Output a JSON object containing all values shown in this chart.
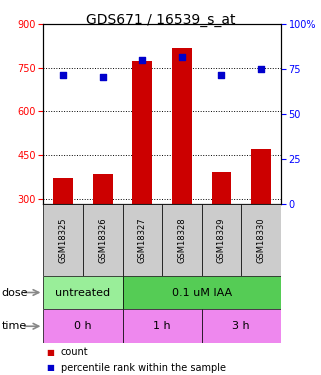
{
  "title": "GDS671 / 16539_s_at",
  "samples": [
    "GSM18325",
    "GSM18326",
    "GSM18327",
    "GSM18328",
    "GSM18329",
    "GSM18330"
  ],
  "counts": [
    370,
    385,
    775,
    820,
    390,
    470
  ],
  "percentiles": [
    72,
    71,
    80,
    82,
    72,
    75
  ],
  "ylim_left": [
    280,
    900
  ],
  "ylim_right": [
    0,
    100
  ],
  "yticks_left": [
    300,
    450,
    600,
    750,
    900
  ],
  "yticks_right": [
    0,
    25,
    50,
    75,
    100
  ],
  "bar_color": "#cc0000",
  "dot_color": "#0000cc",
  "bar_bottom": 280,
  "dose_data": [
    {
      "label": "untreated",
      "start": 0,
      "end": 2,
      "color": "#99ee99"
    },
    {
      "label": "0.1 uM IAA",
      "start": 2,
      "end": 6,
      "color": "#55cc55"
    }
  ],
  "time_data": [
    {
      "label": "0 h",
      "start": 0,
      "end": 2,
      "color": "#ee88ee"
    },
    {
      "label": "1 h",
      "start": 2,
      "end": 4,
      "color": "#ee88ee"
    },
    {
      "label": "3 h",
      "start": 4,
      "end": 6,
      "color": "#ee88ee"
    }
  ],
  "sample_bg_color": "#cccccc",
  "dose_row_label": "dose",
  "time_row_label": "time",
  "legend_count_label": "count",
  "legend_pct_label": "percentile rank within the sample",
  "title_fontsize": 10,
  "tick_fontsize": 7,
  "sample_fontsize": 6,
  "row_label_fontsize": 8,
  "cell_fontsize": 8,
  "legend_fontsize": 7
}
